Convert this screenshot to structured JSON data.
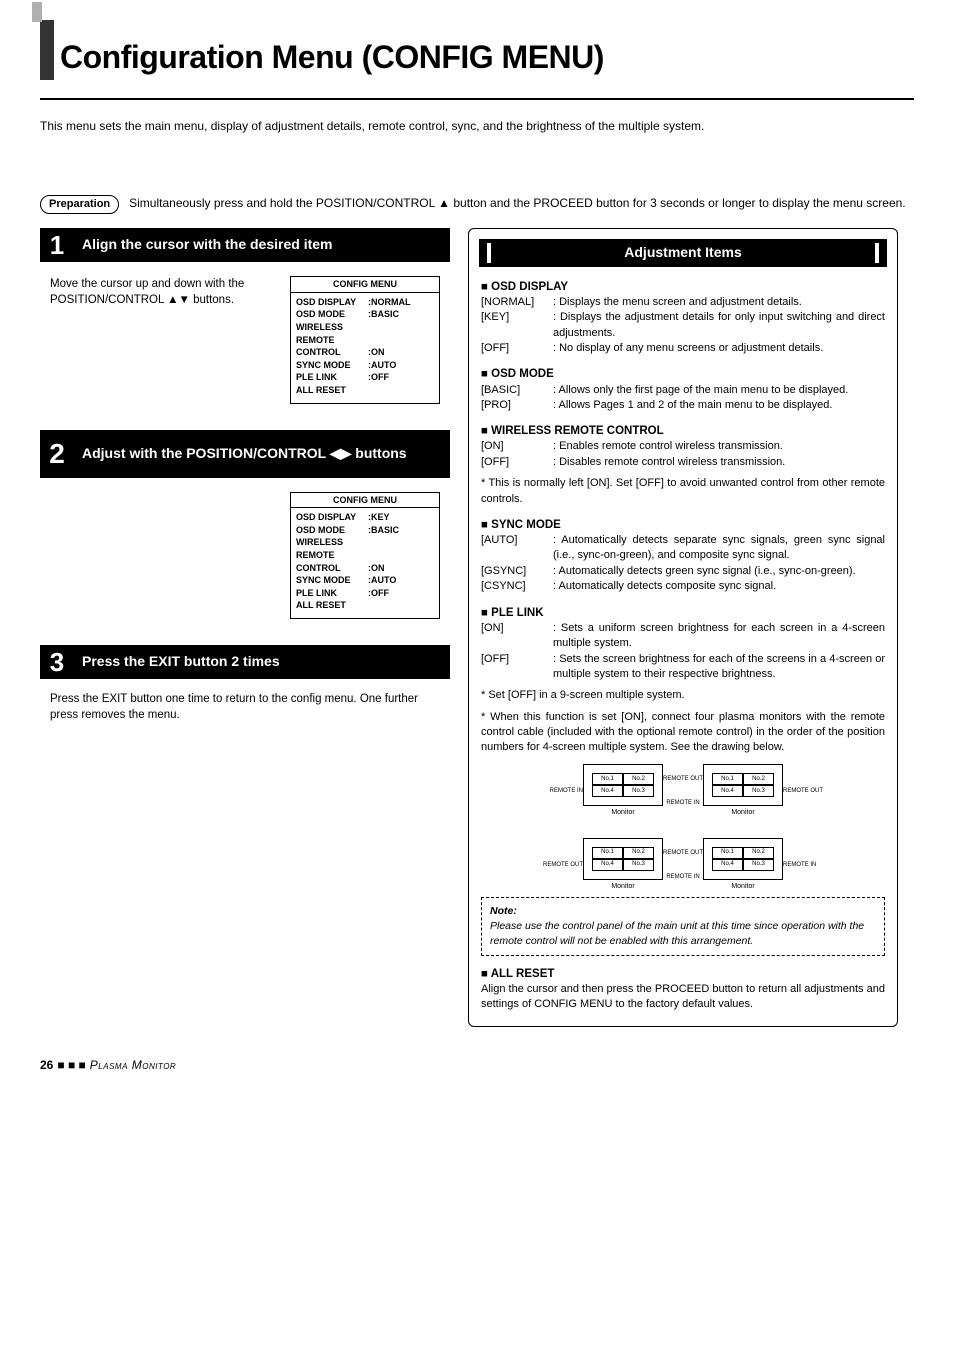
{
  "title": "Configuration Menu (CONFIG MENU)",
  "intro": "This menu sets the main menu, display of adjustment details, remote control, sync, and the brightness of the multiple system.",
  "preparation": {
    "badge": "Preparation",
    "text": "Simultaneously press and hold the POSITION/CONTROL ▲ button and the PROCEED button for 3 seconds or longer to display the menu screen."
  },
  "steps": [
    {
      "num": "1",
      "title": "Align the cursor with the desired item",
      "desc": "Move the cursor up and down with the POSITION/CONTROL ▲▼ buttons.",
      "menu": {
        "header": "CONFIG MENU",
        "rows": [
          {
            "k": "OSD DISPLAY",
            "v": ":NORMAL"
          },
          {
            "k": "OSD MODE",
            "v": ":BASIC"
          },
          {
            "k": "WIRELESS REMOTE",
            "v": ""
          },
          {
            "k": "CONTROL",
            "v": ":ON"
          },
          {
            "k": "SYNC MODE",
            "v": ":AUTO"
          },
          {
            "k": "PLE LINK",
            "v": ":OFF"
          },
          {
            "k": "ALL RESET",
            "v": ""
          }
        ]
      }
    },
    {
      "num": "2",
      "title": "Adjust with the POSITION/CONTROL ◀▶ buttons",
      "desc": "",
      "menu": {
        "header": "CONFIG MENU",
        "rows": [
          {
            "k": "OSD DISPLAY",
            "v": ":KEY"
          },
          {
            "k": "OSD MODE",
            "v": ":BASIC"
          },
          {
            "k": "WIRELESS REMOTE",
            "v": ""
          },
          {
            "k": "CONTROL",
            "v": ":ON"
          },
          {
            "k": "SYNC MODE",
            "v": ":AUTO"
          },
          {
            "k": "PLE LINK",
            "v": ":OFF"
          },
          {
            "k": "ALL RESET",
            "v": ""
          }
        ]
      }
    },
    {
      "num": "3",
      "title": "Press the EXIT button 2 times",
      "desc": "Press the EXIT button one time to return to the config menu. One further press removes the menu."
    }
  ],
  "adjustment": {
    "header": "Adjustment Items",
    "sections": [
      {
        "title": "OSD DISPLAY",
        "rows": [
          {
            "k": "[NORMAL]",
            "d": ": Displays the menu screen and adjustment details."
          },
          {
            "k": "[KEY]",
            "d": ": Displays the adjustment details for only input switching and direct adjustments."
          },
          {
            "k": "[OFF]",
            "d": ": No display of any menu screens or adjustment details."
          }
        ]
      },
      {
        "title": "OSD MODE",
        "rows": [
          {
            "k": "[BASIC]",
            "d": ": Allows only the first page of the main menu to be displayed."
          },
          {
            "k": "[PRO]",
            "d": ": Allows Pages 1 and 2 of the main menu to be displayed."
          }
        ]
      },
      {
        "title": "WIRELESS REMOTE CONTROL",
        "rows": [
          {
            "k": "[ON]",
            "d": ": Enables remote control wireless transmission."
          },
          {
            "k": "[OFF]",
            "d": ": Disables remote control wireless transmission."
          }
        ],
        "note": "* This is normally left [ON]. Set [OFF] to avoid unwanted control from other remote controls."
      },
      {
        "title": "SYNC MODE",
        "rows": [
          {
            "k": "[AUTO]",
            "d": ": Automatically detects separate sync signals, green sync signal (i.e., sync-on-green), and composite sync signal."
          },
          {
            "k": "[GSYNC]",
            "d": ": Automatically detects green sync signal (i.e., sync-on-green)."
          },
          {
            "k": "[CSYNC]",
            "d": ": Automatically detects composite sync signal."
          }
        ]
      },
      {
        "title": "PLE LINK",
        "rows": [
          {
            "k": "[ON]",
            "d": ": Sets a uniform screen brightness for each screen in a 4-screen multiple system."
          },
          {
            "k": "[OFF]",
            "d": ": Sets the screen brightness for each of the screens in a 4-screen or multiple system to their respective brightness."
          }
        ],
        "notes": [
          "* Set [OFF] in a 9-screen multiple system.",
          "* When this function is set [ON], connect four plasma monitors with the remote control cable (included with the optional remote control) in the order of the position numbers for 4-screen multiple system. See the drawing below."
        ]
      }
    ],
    "diagram": {
      "remote_in": "REMOTE IN",
      "remote_out": "REMOTE OUT",
      "monitor": "Monitor",
      "cells": [
        "No.1",
        "No.2",
        "No.4",
        "No.3"
      ]
    },
    "dashed_note": {
      "head": "Note:",
      "body": "Please use the control panel of the main unit at this time since operation with the remote control will not be enabled with this arrangement."
    },
    "all_reset": {
      "title": "ALL RESET",
      "body": "Align the cursor and then press the PROCEED button to return all adjustments and settings of CONFIG MENU to the factory default values."
    }
  },
  "footer": {
    "page": "26",
    "label": "Plasma Monitor"
  }
}
